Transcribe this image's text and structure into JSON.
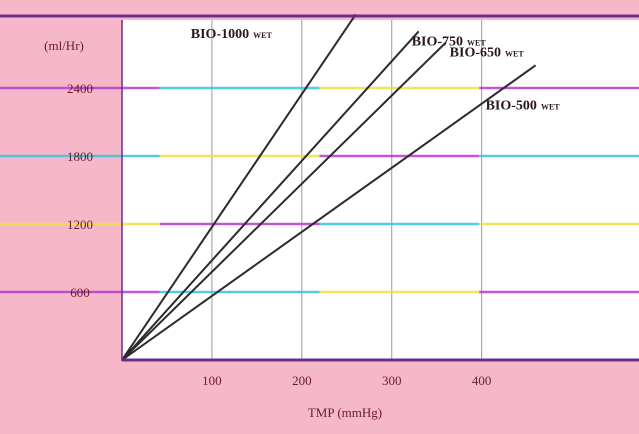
{
  "chart_data": {
    "type": "line",
    "title": "",
    "xlabel": "TMP (mmHg)",
    "ylabel": "(ml/Hr)",
    "xlim": [
      0,
      575
    ],
    "ylim": [
      0,
      3000
    ],
    "x_ticks": [
      100,
      200,
      300,
      400
    ],
    "y_ticks": [
      600,
      1200,
      1800,
      2400
    ],
    "grid": true,
    "series": [
      {
        "name": "BIO-1000",
        "suffix": "WET",
        "color": "#2b2b2b",
        "x": [
          0,
          260
        ],
        "y": [
          0,
          3050
        ]
      },
      {
        "name": "BIO-750",
        "suffix": "WET",
        "color": "#2b2b2b",
        "x": [
          0,
          330
        ],
        "y": [
          0,
          2900
        ]
      },
      {
        "name": "BIO-650",
        "suffix": "WET",
        "color": "#2b2b2b",
        "x": [
          0,
          360
        ],
        "y": [
          0,
          2800
        ]
      },
      {
        "name": "BIO-500",
        "suffix": "WET",
        "color": "#2b2b2b",
        "x": [
          0,
          460
        ],
        "y": [
          0,
          2600
        ]
      }
    ],
    "colors": {
      "page_background": "#f6b8c8",
      "plot_background": "#ffffff",
      "frame": "#6a2d8c",
      "vertical_grid": "#9a9a9a",
      "band_magenta": "#b43cc8",
      "band_cyan": "#35c6dc",
      "band_yellow": "#f0e040",
      "text": "#6a1b2d"
    }
  }
}
